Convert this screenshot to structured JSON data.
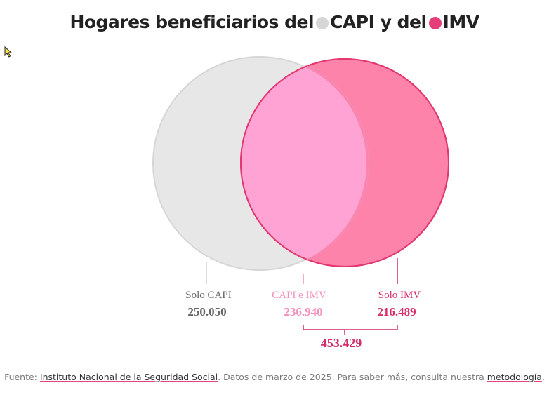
{
  "title": {
    "prefix": "Hogares beneficiarios del",
    "capi": "CAPI",
    "middle": "y del",
    "imv": "IMV"
  },
  "colors": {
    "capi_fill": "#e7e7e7",
    "capi_stroke": "#d6d6d6",
    "imv_fill": "#fe83aa",
    "imv_stroke": "#e3376f",
    "overlap_fill": "#fea3d3",
    "dark_pink": "#d52e66",
    "light_pink": "#f48fbb",
    "gray_text": "#666666"
  },
  "chart_data": {
    "type": "venn",
    "sets": [
      {
        "name": "CAPI"
      },
      {
        "name": "IMV"
      }
    ],
    "regions": [
      {
        "label": "Solo CAPI",
        "value": "250.050"
      },
      {
        "label": "CAPI e IMV",
        "value": "236.940"
      },
      {
        "label": "Solo IMV",
        "value": "216.489"
      }
    ],
    "imv_total": "453.429"
  },
  "footer": {
    "prefix": "Fuente: ",
    "source": "Instituto Nacional de la Seguridad Social",
    "middle": ". Datos de marzo de 2025. Para saber más, consulta nuestra ",
    "method": "metodología",
    "suffix": "."
  }
}
